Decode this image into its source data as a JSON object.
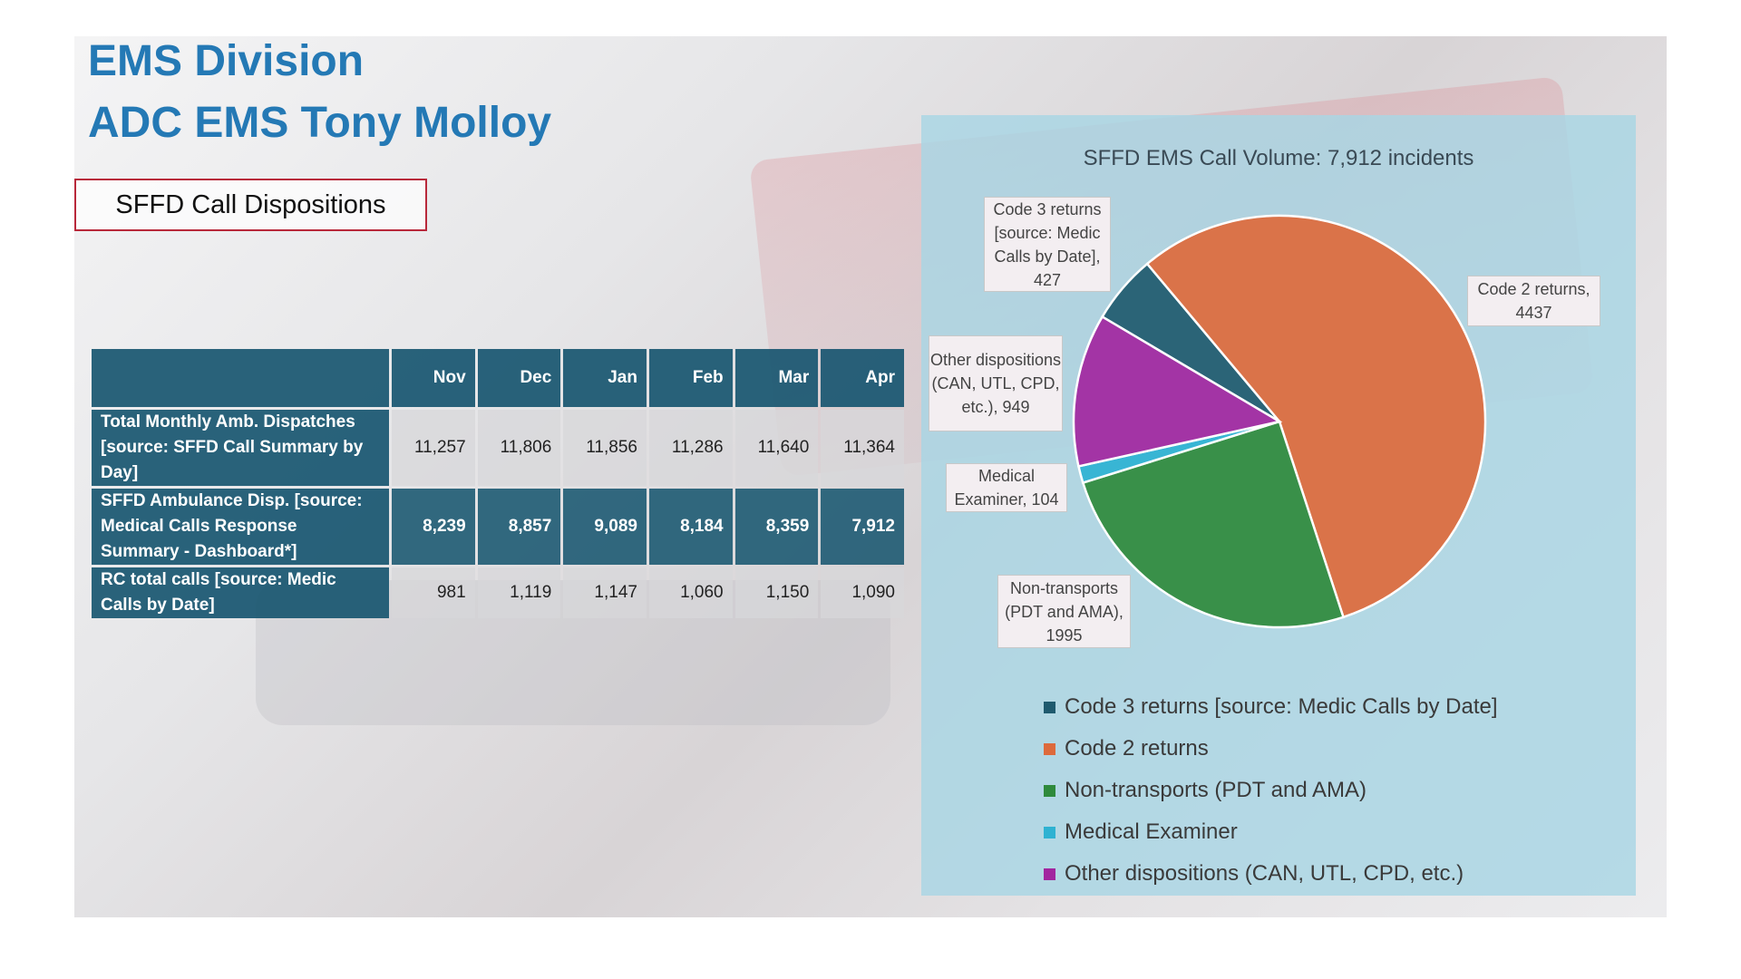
{
  "header": {
    "title_line1": "EMS Division",
    "title_line2": "ADC EMS Tony Molloy",
    "section_label": "SFFD Call Dispositions"
  },
  "table": {
    "columns": [
      "",
      "Nov",
      "Dec",
      "Jan",
      "Feb",
      "Mar",
      "Apr"
    ],
    "rows": [
      {
        "label": "Total Monthly Amb. Dispatches [source: SFFD Call Summary by Day]",
        "values": [
          "11,257",
          "11,806",
          "11,856",
          "11,286",
          "11,640",
          "11,364"
        ]
      },
      {
        "label": "SFFD Ambulance Disp. [source: Medical Calls Response Summary - Dashboard*]",
        "values": [
          "8,239",
          "8,857",
          "9,089",
          "8,184",
          "8,359",
          "7,912"
        ]
      },
      {
        "label": "RC total calls [source: Medic Calls by Date]",
        "values": [
          "981",
          "1,119",
          "1,147",
          "1,060",
          "1,150",
          "1,090"
        ]
      }
    ]
  },
  "chart_data": {
    "type": "pie",
    "title": "SFFD EMS Call Volume: 7,912 incidents",
    "categories": [
      "Code 3 returns [source: Medic Calls by Date]",
      "Code 2 returns",
      "Non-transports (PDT and AMA)",
      "Medical Examiner",
      "Other dispositions (CAN, UTL, CPD, etc.)"
    ],
    "values": [
      427,
      4437,
      1995,
      104,
      949
    ],
    "colors": [
      "#1f5a6e",
      "#dd6a3c",
      "#2f8a3c",
      "#2eb2d2",
      "#a2269f"
    ],
    "data_labels": [
      "Code 3 returns [source: Medic Calls by Date], 427",
      "Code 2 returns, 4437",
      "Non-transports (PDT and AMA), 1995",
      "Medical Examiner, 104",
      "Other dispositions (CAN, UTL, CPD, etc.), 949"
    ],
    "legend_position": "bottom"
  }
}
